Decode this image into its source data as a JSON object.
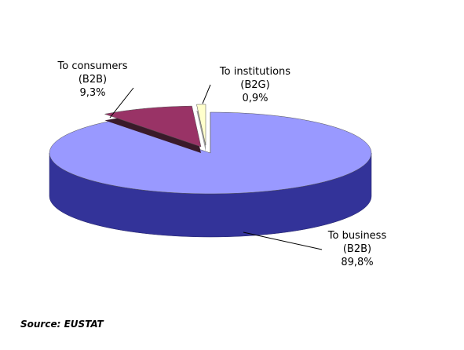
{
  "chart_data": {
    "type": "pie",
    "categories": [
      "To business (B2B)",
      "To consumers (B2B)",
      "To institutions (B2G)"
    ],
    "values": [
      89.8,
      9.3,
      0.9
    ],
    "value_labels": [
      "89,8%",
      "9,3%",
      "0,9%"
    ],
    "colors": [
      "#9999ff",
      "#993366",
      "#ffffcc"
    ],
    "source": "Source: EUSTAT"
  }
}
